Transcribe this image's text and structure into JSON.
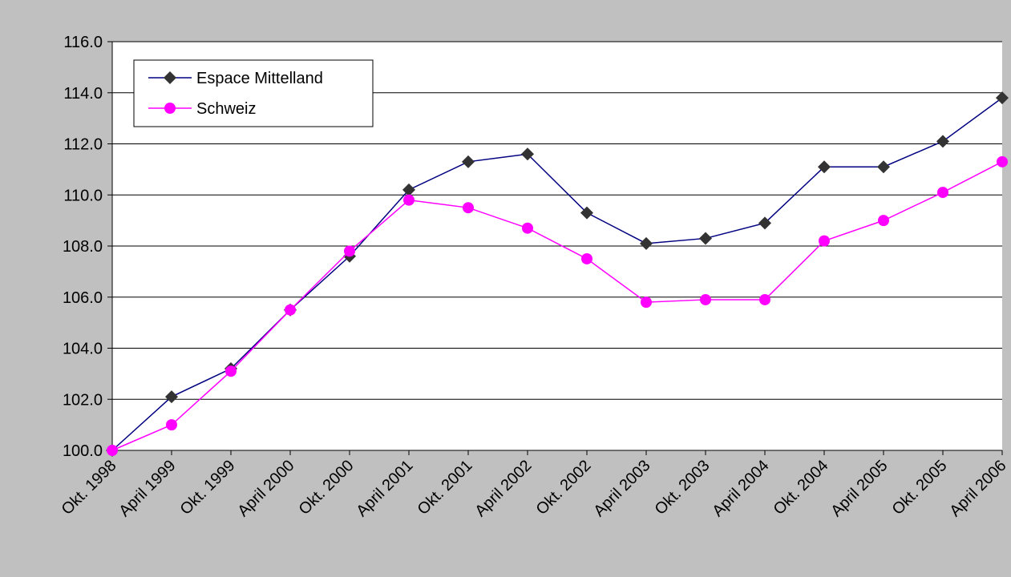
{
  "chart_data": {
    "type": "line",
    "categories": [
      "Okt. 1998",
      "April 1999",
      "Okt. 1999",
      "April 2000",
      "Okt. 2000",
      "April 2001",
      "Okt. 2001",
      "April 2002",
      "Okt. 2002",
      "April 2003",
      "Okt. 2003",
      "April 2004",
      "Okt. 2004",
      "April 2005",
      "Okt. 2005",
      "April 2006"
    ],
    "series": [
      {
        "name": "Espace Mittelland",
        "color": "#000080",
        "marker": "diamond",
        "marker_color": "#333333",
        "values": [
          100.0,
          102.1,
          103.2,
          105.5,
          107.6,
          110.2,
          111.3,
          111.6,
          109.3,
          108.1,
          108.3,
          108.9,
          111.1,
          111.1,
          112.1,
          113.8
        ]
      },
      {
        "name": "Schweiz",
        "color": "#ff00ff",
        "marker": "circle",
        "marker_color": "#ff00ff",
        "values": [
          100.0,
          101.0,
          103.1,
          105.5,
          107.8,
          109.8,
          109.5,
          108.7,
          107.5,
          105.8,
          105.9,
          105.9,
          108.2,
          109.0,
          110.1,
          111.3
        ]
      }
    ],
    "ylim": [
      100,
      116
    ],
    "yticks": [
      {
        "value": 100,
        "label": "100.0"
      },
      {
        "value": 102,
        "label": "102.0"
      },
      {
        "value": 104,
        "label": "104.0"
      },
      {
        "value": 106,
        "label": "106.0"
      },
      {
        "value": 108,
        "label": "108.0"
      },
      {
        "value": 110,
        "label": "110.0"
      },
      {
        "value": 112,
        "label": "112.0"
      },
      {
        "value": 114,
        "label": "114.0"
      },
      {
        "value": 116,
        "label": "116.0"
      }
    ],
    "grid": true,
    "legend": "top-left"
  }
}
